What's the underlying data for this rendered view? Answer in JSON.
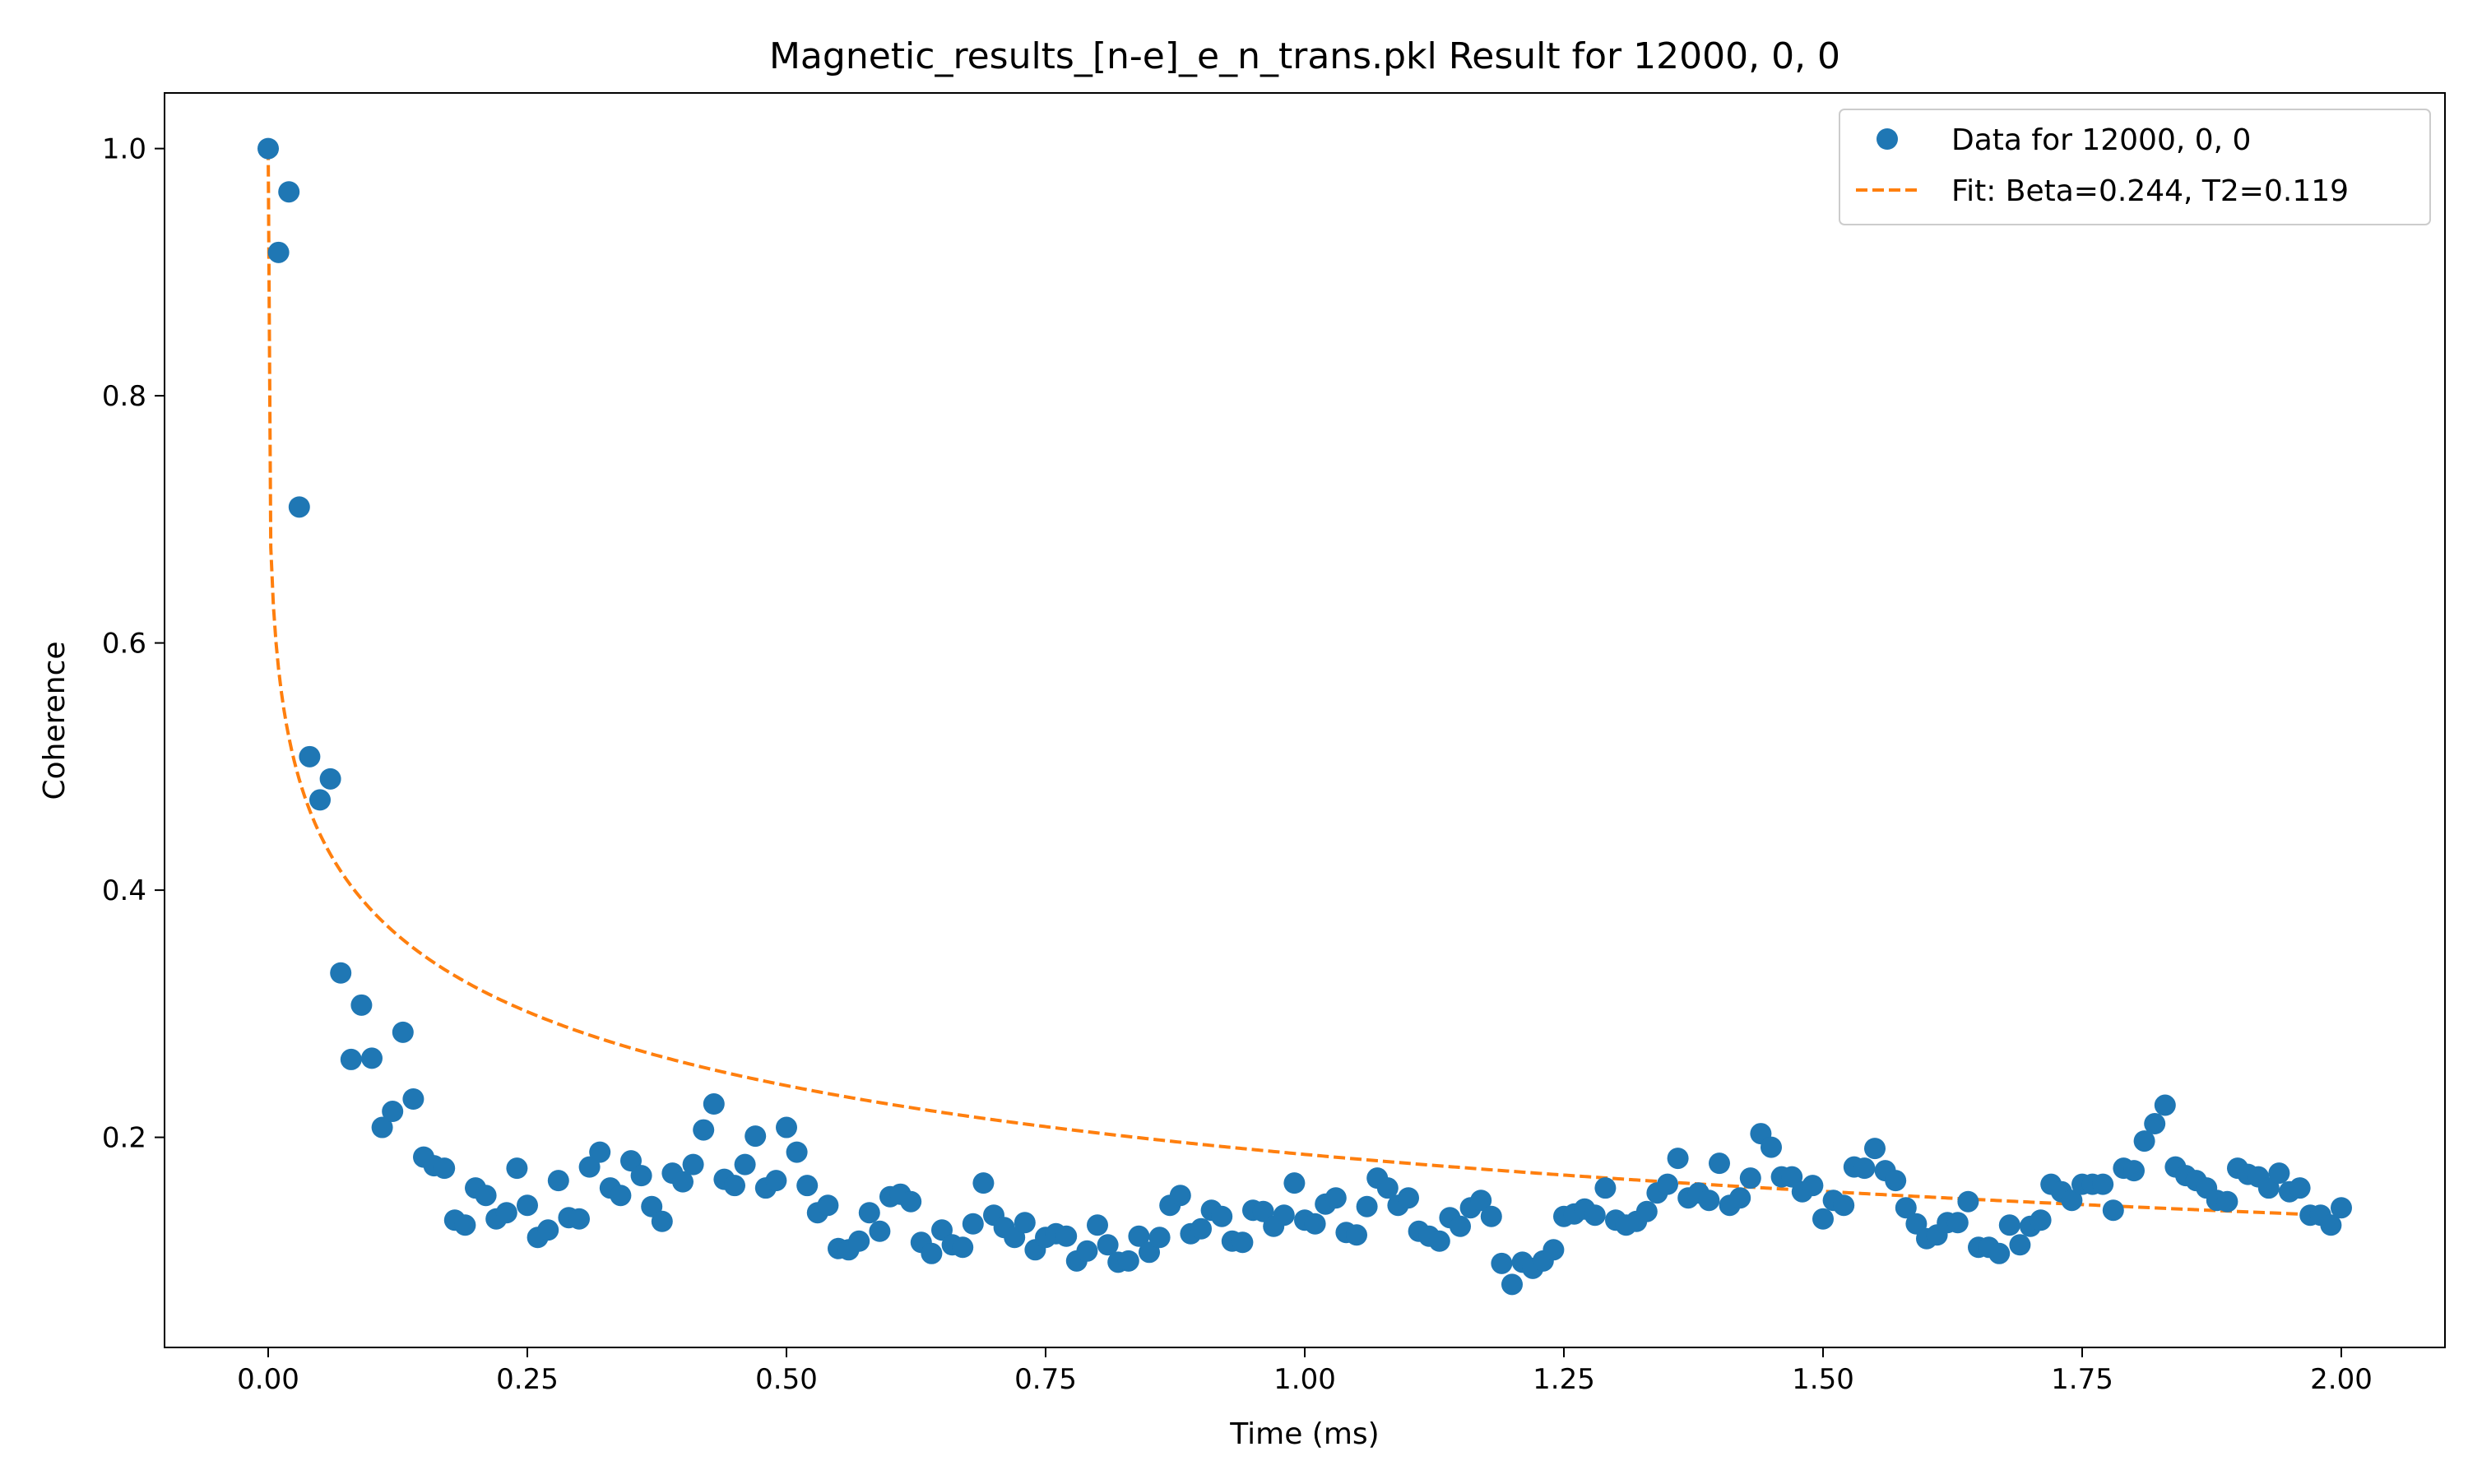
{
  "chart_data": {
    "type": "scatter",
    "title": "Magnetic_results_[n-e]_e_n_trans.pkl Result for 12000, 0, 0",
    "xlabel": "Time (ms)",
    "ylabel": "Coherence",
    "xlim": [
      -0.1,
      2.1
    ],
    "ylim": [
      0.03,
      1.045
    ],
    "xticks": [
      {
        "value": 0.0,
        "label": "0.00"
      },
      {
        "value": 0.25,
        "label": "0.25"
      },
      {
        "value": 0.5,
        "label": "0.50"
      },
      {
        "value": 0.75,
        "label": "0.75"
      },
      {
        "value": 1.0,
        "label": "1.00"
      },
      {
        "value": 1.25,
        "label": "1.25"
      },
      {
        "value": 1.5,
        "label": "1.50"
      },
      {
        "value": 1.75,
        "label": "1.75"
      },
      {
        "value": 2.0,
        "label": "2.00"
      }
    ],
    "yticks": [
      {
        "value": 0.2,
        "label": "0.2"
      },
      {
        "value": 0.4,
        "label": "0.4"
      },
      {
        "value": 0.6,
        "label": "0.6"
      },
      {
        "value": 0.8,
        "label": "0.8"
      },
      {
        "value": 1.0,
        "label": "1.0"
      }
    ],
    "grid": false,
    "legend_position": "top-right",
    "colors": {
      "data": "#1f77b4",
      "fit": "#ff7f0e",
      "axes": "#000000",
      "background": "#ffffff"
    },
    "series": [
      {
        "name": "Data for 12000, 0, 0",
        "kind": "scatter",
        "x": [
          0.0,
          0.01,
          0.02,
          0.03,
          0.04,
          0.05,
          0.06,
          0.07,
          0.08,
          0.09,
          0.1,
          0.11,
          0.12,
          0.13,
          0.14,
          0.15,
          0.16,
          0.17,
          0.18,
          0.19,
          0.2,
          0.21,
          0.22,
          0.23,
          0.24,
          0.25,
          0.26,
          0.27,
          0.28,
          0.29,
          0.3,
          0.31,
          0.32,
          0.33,
          0.34,
          0.35,
          0.36,
          0.37,
          0.38,
          0.39,
          0.4,
          0.41,
          0.42,
          0.43,
          0.44,
          0.45,
          0.46,
          0.47,
          0.48,
          0.49,
          0.5,
          0.51,
          0.52,
          0.53,
          0.54,
          0.55,
          0.56,
          0.57,
          0.58,
          0.59,
          0.6,
          0.61,
          0.62,
          0.63,
          0.64,
          0.65,
          0.66,
          0.67,
          0.68,
          0.69,
          0.7,
          0.71,
          0.72,
          0.73,
          0.74,
          0.75,
          0.76,
          0.77,
          0.78,
          0.79,
          0.8,
          0.81,
          0.82,
          0.83,
          0.84,
          0.85,
          0.86,
          0.87,
          0.88,
          0.89,
          0.9,
          0.91,
          0.92,
          0.93,
          0.94,
          0.95,
          0.96,
          0.97,
          0.98,
          0.99,
          1.0,
          1.01,
          1.02,
          1.03,
          1.04,
          1.05,
          1.06,
          1.07,
          1.08,
          1.09,
          1.1,
          1.11,
          1.12,
          1.13,
          1.14,
          1.15,
          1.16,
          1.17,
          1.18,
          1.19,
          1.2,
          1.21,
          1.22,
          1.23,
          1.24,
          1.25,
          1.26,
          1.27,
          1.28,
          1.29,
          1.3,
          1.31,
          1.32,
          1.33,
          1.34,
          1.35,
          1.36,
          1.37,
          1.38,
          1.39,
          1.4,
          1.41,
          1.42,
          1.43,
          1.44,
          1.45,
          1.46,
          1.47,
          1.48,
          1.49,
          1.5,
          1.51,
          1.52,
          1.53,
          1.54,
          1.55,
          1.56,
          1.57,
          1.58,
          1.59,
          1.6,
          1.61,
          1.62,
          1.63,
          1.64,
          1.65,
          1.66,
          1.67,
          1.68,
          1.69,
          1.7,
          1.71,
          1.72,
          1.73,
          1.74,
          1.75,
          1.76,
          1.77,
          1.78,
          1.79,
          1.8,
          1.81,
          1.82,
          1.83,
          1.84,
          1.85,
          1.86,
          1.87,
          1.88,
          1.89,
          1.9,
          1.91,
          1.92,
          1.93,
          1.94,
          1.95,
          1.96,
          1.97,
          1.98,
          1.99,
          2.0
        ],
        "y": [
          1.0,
          0.916,
          0.965,
          0.71,
          0.508,
          0.473,
          0.49,
          0.333,
          0.263,
          0.307,
          0.264,
          0.208,
          0.221,
          0.285,
          0.231,
          0.184,
          0.177,
          0.175,
          0.133,
          0.129,
          0.159,
          0.153,
          0.134,
          0.139,
          0.175,
          0.145,
          0.119,
          0.125,
          0.165,
          0.135,
          0.134,
          0.176,
          0.188,
          0.159,
          0.153,
          0.181,
          0.169,
          0.144,
          0.132,
          0.171,
          0.164,
          0.178,
          0.206,
          0.227,
          0.166,
          0.161,
          0.178,
          0.201,
          0.159,
          0.165,
          0.208,
          0.188,
          0.161,
          0.139,
          0.145,
          0.11,
          0.109,
          0.116,
          0.139,
          0.124,
          0.152,
          0.154,
          0.148,
          0.115,
          0.106,
          0.125,
          0.113,
          0.111,
          0.13,
          0.163,
          0.137,
          0.127,
          0.119,
          0.131,
          0.109,
          0.119,
          0.122,
          0.12,
          0.1,
          0.108,
          0.129,
          0.113,
          0.099,
          0.1,
          0.12,
          0.107,
          0.119,
          0.145,
          0.153,
          0.122,
          0.126,
          0.141,
          0.136,
          0.116,
          0.115,
          0.141,
          0.14,
          0.128,
          0.137,
          0.163,
          0.133,
          0.13,
          0.146,
          0.151,
          0.123,
          0.121,
          0.144,
          0.167,
          0.159,
          0.145,
          0.151,
          0.124,
          0.12,
          0.116,
          0.135,
          0.128,
          0.143,
          0.149,
          0.136,
          0.098,
          0.081,
          0.099,
          0.094,
          0.1,
          0.109,
          0.136,
          0.138,
          0.142,
          0.137,
          0.159,
          0.133,
          0.129,
          0.132,
          0.14,
          0.155,
          0.162,
          0.183,
          0.151,
          0.155,
          0.149,
          0.179,
          0.145,
          0.151,
          0.167,
          0.203,
          0.192,
          0.168,
          0.168,
          0.156,
          0.161,
          0.134,
          0.149,
          0.145,
          0.176,
          0.175,
          0.191,
          0.173,
          0.165,
          0.143,
          0.13,
          0.118,
          0.121,
          0.131,
          0.131,
          0.148,
          0.111,
          0.111,
          0.106,
          0.129,
          0.113,
          0.128,
          0.133,
          0.162,
          0.156,
          0.149,
          0.162,
          0.162,
          0.162,
          0.141,
          0.175,
          0.173,
          0.197,
          0.211,
          0.226,
          0.176,
          0.169,
          0.165,
          0.159,
          0.149,
          0.148,
          0.175,
          0.17,
          0.168,
          0.159,
          0.171,
          0.156,
          0.159,
          0.137,
          0.137,
          0.129,
          0.143
        ]
      },
      {
        "name": "Fit: Beta=0.244, T2=0.119",
        "kind": "line",
        "style": "dashed",
        "model": "exp(-(t/T2)^Beta)",
        "params": {
          "beta": 0.244,
          "t2": 0.119
        },
        "x_range": [
          0.0,
          2.0
        ]
      }
    ]
  }
}
